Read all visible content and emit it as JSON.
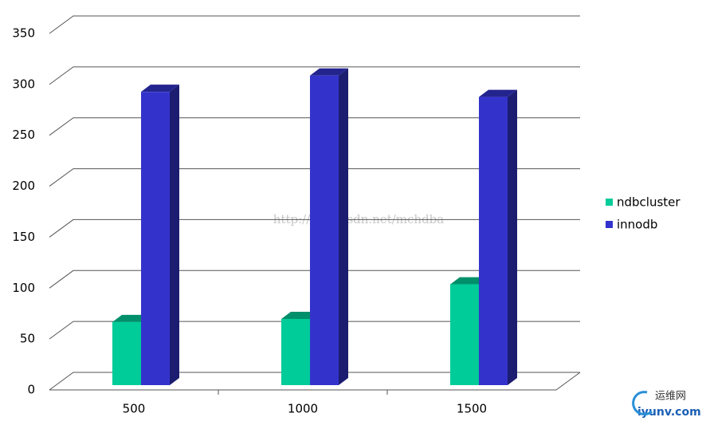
{
  "chart_data": {
    "type": "bar3d",
    "categories": [
      "500",
      "1000",
      "1500"
    ],
    "series": [
      {
        "name": "ndbcluster",
        "color": "#00cc99",
        "values": [
          62,
          65,
          99
        ]
      },
      {
        "name": "innodb",
        "color": "#3333cc",
        "values": [
          288,
          304,
          283
        ]
      }
    ],
    "ylim": [
      0,
      350
    ],
    "yticks": [
      0,
      50,
      100,
      150,
      200,
      250,
      300,
      350
    ],
    "grid": true,
    "legend": "right",
    "watermark": "http://blog.csdn.net/mchdba",
    "logo": [
      "运维网",
      "iyunv.com"
    ]
  }
}
